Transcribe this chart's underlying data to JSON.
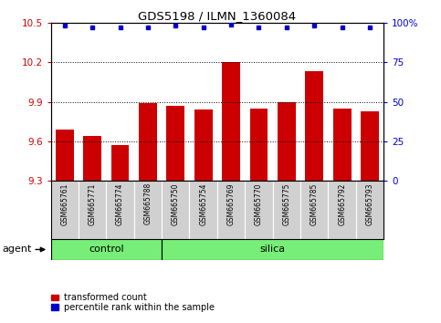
{
  "title": "GDS5198 / ILMN_1360084",
  "samples": [
    "GSM665761",
    "GSM665771",
    "GSM665774",
    "GSM665788",
    "GSM665750",
    "GSM665754",
    "GSM665769",
    "GSM665770",
    "GSM665775",
    "GSM665785",
    "GSM665792",
    "GSM665793"
  ],
  "bar_values": [
    9.69,
    9.64,
    9.57,
    9.89,
    9.87,
    9.84,
    10.2,
    9.85,
    9.9,
    10.13,
    9.85,
    9.83
  ],
  "percentile_values": [
    98,
    97,
    97,
    97,
    98,
    97,
    99,
    97,
    97,
    98,
    97,
    97
  ],
  "ylim_left": [
    9.3,
    10.5
  ],
  "ylim_right": [
    0,
    100
  ],
  "yticks_left": [
    9.3,
    9.6,
    9.9,
    10.2,
    10.5
  ],
  "yticks_right": [
    0,
    25,
    50,
    75,
    100
  ],
  "yticklabels_right": [
    "0",
    "25",
    "50",
    "75",
    "100%"
  ],
  "bar_color": "#cc0000",
  "percentile_color": "#0000cc",
  "bar_base": 9.3,
  "groups": [
    {
      "label": "control",
      "start": 0,
      "end": 4
    },
    {
      "label": "silica",
      "start": 4,
      "end": 12
    }
  ],
  "group_color": "#77ee77",
  "agent_label": "agent",
  "legend_bar_label": "transformed count",
  "legend_pct_label": "percentile rank within the sample",
  "tick_label_color_left": "#cc0000",
  "tick_label_color_right": "#0000cc",
  "sample_bg_color": "#d0d0d0"
}
